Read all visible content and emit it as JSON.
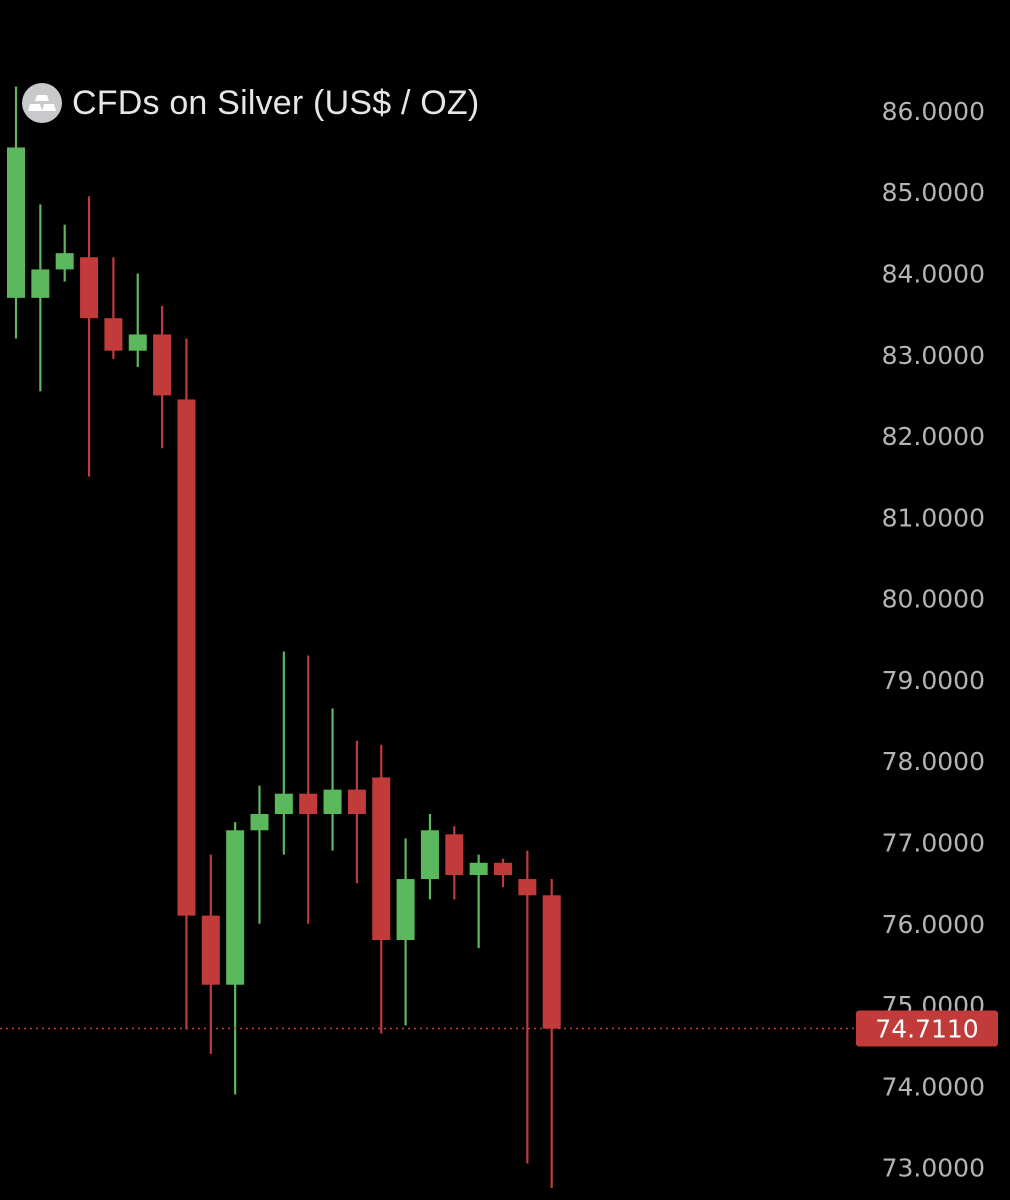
{
  "header": {
    "title": "CFDs on Silver (US$ / OZ)",
    "logo_icon": "silver-bars-icon"
  },
  "colors": {
    "background": "#000000",
    "up": "#5cb85c",
    "down": "#c23b3b",
    "axis_text": "#b4b4b4",
    "price_tag": "#c23b3b"
  },
  "chart_data": {
    "type": "candlestick",
    "title": "CFDs on Silver (US$ / OZ)",
    "y_axis_side": "right",
    "ylim": [
      72.7,
      86.7
    ],
    "y_ticks": [
      "86.0000",
      "85.0000",
      "84.0000",
      "83.0000",
      "82.0000",
      "81.0000",
      "80.0000",
      "79.0000",
      "78.0000",
      "77.0000",
      "76.0000",
      "75.0000",
      "74.0000",
      "73.0000"
    ],
    "last_price": {
      "value": 74.711,
      "label": "74.7110",
      "line_style": "dotted"
    },
    "candles": [
      {
        "open": 83.7,
        "high": 86.3,
        "low": 83.2,
        "close": 85.55
      },
      {
        "open": 83.7,
        "high": 84.85,
        "low": 82.55,
        "close": 84.05
      },
      {
        "open": 84.05,
        "high": 84.6,
        "low": 83.9,
        "close": 84.25
      },
      {
        "open": 84.2,
        "high": 84.95,
        "low": 81.5,
        "close": 83.45
      },
      {
        "open": 83.45,
        "high": 84.2,
        "low": 82.95,
        "close": 83.05
      },
      {
        "open": 83.05,
        "high": 84.0,
        "low": 82.85,
        "close": 83.25
      },
      {
        "open": 83.25,
        "high": 83.6,
        "low": 81.85,
        "close": 82.5
      },
      {
        "open": 82.45,
        "high": 83.2,
        "low": 74.7,
        "close": 76.1
      },
      {
        "open": 76.1,
        "high": 76.85,
        "low": 74.4,
        "close": 75.25
      },
      {
        "open": 75.25,
        "high": 77.25,
        "low": 73.9,
        "close": 77.15
      },
      {
        "open": 77.15,
        "high": 77.7,
        "low": 76.0,
        "close": 77.35
      },
      {
        "open": 77.35,
        "high": 79.35,
        "low": 76.85,
        "close": 77.6
      },
      {
        "open": 77.6,
        "high": 79.3,
        "low": 76.0,
        "close": 77.35
      },
      {
        "open": 77.35,
        "high": 78.65,
        "low": 76.9,
        "close": 77.65
      },
      {
        "open": 77.65,
        "high": 78.25,
        "low": 76.5,
        "close": 77.35
      },
      {
        "open": 77.8,
        "high": 78.2,
        "low": 74.65,
        "close": 75.8
      },
      {
        "open": 75.8,
        "high": 77.05,
        "low": 74.75,
        "close": 76.55
      },
      {
        "open": 76.55,
        "high": 77.35,
        "low": 76.3,
        "close": 77.15
      },
      {
        "open": 77.1,
        "high": 77.2,
        "low": 76.3,
        "close": 76.6
      },
      {
        "open": 76.6,
        "high": 76.85,
        "low": 75.7,
        "close": 76.75
      },
      {
        "open": 76.75,
        "high": 76.8,
        "low": 76.45,
        "close": 76.6
      },
      {
        "open": 76.55,
        "high": 76.9,
        "low": 73.05,
        "close": 76.35
      },
      {
        "open": 76.35,
        "high": 76.55,
        "low": 72.75,
        "close": 74.71
      }
    ]
  }
}
